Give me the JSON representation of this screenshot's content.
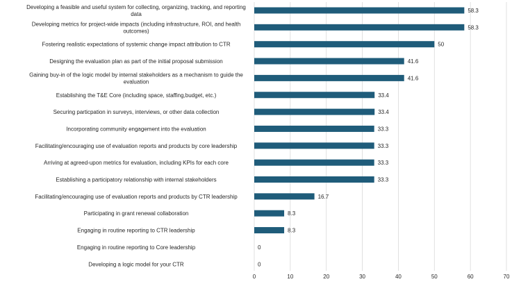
{
  "chart_data": {
    "type": "bar",
    "orientation": "horizontal",
    "title": "",
    "xlabel": "",
    "ylabel": "",
    "xlim": [
      0,
      70
    ],
    "x_ticks": [
      "0",
      "10",
      "20",
      "30",
      "40",
      "50",
      "60",
      "70"
    ],
    "grid": true,
    "bar_color": "#1f5c7a",
    "categories": [
      [
        "Developing a feasible and useful system for collecting, organizing, tracking, and reporting",
        "data"
      ],
      [
        "Developing metrics for project-wide impacts (including infrastructure, ROI, and health",
        "outcomes)"
      ],
      [
        "Fostering realistic expectations of systemic change impact attribution to CTR"
      ],
      [
        "Designing the evaluation plan as part of the initial proposal submission"
      ],
      [
        "Gaining buy-in of the logic model by internal stakeholders as a mechanism to guide the",
        "evaluation"
      ],
      [
        "Establishing the T&E Core (including space, staffing,budget, etc.)"
      ],
      [
        "Securing particpation in surveys, interviews, or other data collection"
      ],
      [
        "Incorporating community engagement into the evaluation"
      ],
      [
        "Facilitating/encouraging use of evaluation reports and products by core leadership"
      ],
      [
        "Arriving at agreed-upon metrics for evaluation, including KPIs for each core"
      ],
      [
        "Establishing a participatory relationship with internal stakeholders"
      ],
      [
        "Facilitating/encouraging use of evaluation reports and products by CTR leadership"
      ],
      [
        "Participating in grant renewal collaboration"
      ],
      [
        "Engaging in routine reporting to CTR leadership"
      ],
      [
        "Engaging in routine reporting to Core leadership"
      ],
      [
        "Developing a logic model for your CTR"
      ]
    ],
    "values": [
      58.3,
      58.3,
      50,
      41.6,
      41.6,
      33.4,
      33.4,
      33.3,
      33.3,
      33.3,
      33.3,
      16.7,
      8.3,
      8.3,
      0,
      0
    ],
    "value_labels": [
      "58.3",
      "58.3",
      "50",
      "41.6",
      "41.6",
      "33.4",
      "33.4",
      "33.3",
      "33.3",
      "33.3",
      "33.3",
      "16.7",
      "8.3",
      "8.3",
      "0",
      "0"
    ]
  }
}
